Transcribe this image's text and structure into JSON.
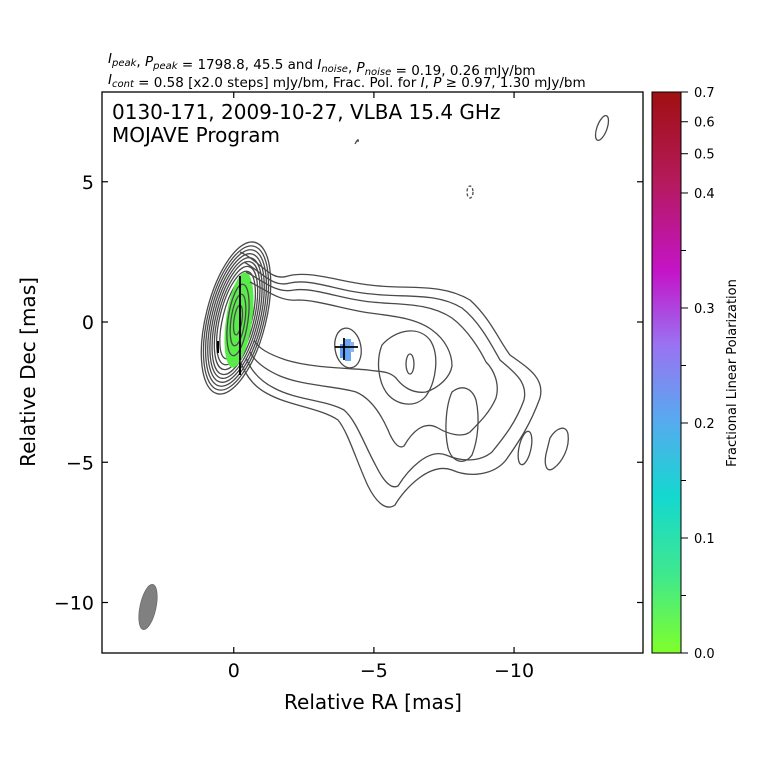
{
  "header": {
    "line1": "I_peak, P_peak = 1798.8, 45.5 and I_noise, P_noise = 0.19, 0.26 mJy/bm",
    "line2": "I_cont = 0.58 [x2.0 steps] mJy/bm, Frac. Pol. for I, P ≥ 0.97, 1.30 mJy/bm"
  },
  "plot_text": {
    "line1": "0130-171, 2009-10-27, VLBA 15.4 GHz",
    "line2": "MOJAVE Program"
  },
  "chart_data": {
    "type": "contour",
    "xlabel": "Relative RA [mas]",
    "ylabel": "Relative Dec [mas]",
    "xlim": [
      4.7,
      -14.6
    ],
    "ylim": [
      -11.8,
      8.2
    ],
    "x_inverted": true,
    "x_ticks": [
      0,
      -5,
      -10
    ],
    "x_tick_labels": [
      "0",
      "−5",
      "−10"
    ],
    "y_ticks": [
      5,
      0,
      -5,
      -10
    ],
    "y_tick_labels": [
      "5",
      "0",
      "−5",
      "−10"
    ],
    "peak_intensity_mJy_bm": 1798.8,
    "peak_polarized_mJy_bm": 45.5,
    "intensity_noise_mJy_bm": 0.19,
    "polarized_noise_mJy_bm": 0.26,
    "lowest_contour_mJy_bm": 0.58,
    "contour_step_factor": 2.0,
    "frac_pol_cut_I_mJy_bm": 0.97,
    "frac_pol_cut_P_mJy_bm": 1.3,
    "core": {
      "ra": 0.0,
      "dec": 0.0
    },
    "knots": [
      {
        "ra": -3.9,
        "dec": -0.9
      },
      {
        "ra": -6.2,
        "dec": -1.5
      }
    ],
    "polarized_regions": [
      {
        "ra": 0.1,
        "dec": 0.0,
        "fractional_pol": 0.03
      },
      {
        "ra": -3.9,
        "dec": -0.9,
        "fractional_pol": 0.22
      }
    ],
    "beam": {
      "ra": 3.2,
      "dec": -10.2
    },
    "colorbar": {
      "label": "Fractional Linear Polarization",
      "range": [
        0.0,
        0.7
      ],
      "tick_values": [
        0.0,
        0.1,
        0.2,
        0.3,
        0.4,
        0.5,
        0.6,
        0.7
      ],
      "tick_labels": [
        "0.0",
        "0.1",
        "0.2",
        "0.3",
        "0.4",
        "0.5",
        "0.6",
        "0.7"
      ],
      "colors": [
        "#7fff2a",
        "#3fe88e",
        "#14d8d0",
        "#5aa8f0",
        "#9a72f2",
        "#c414c8",
        "#b51a5c",
        "#a00f10"
      ]
    }
  }
}
